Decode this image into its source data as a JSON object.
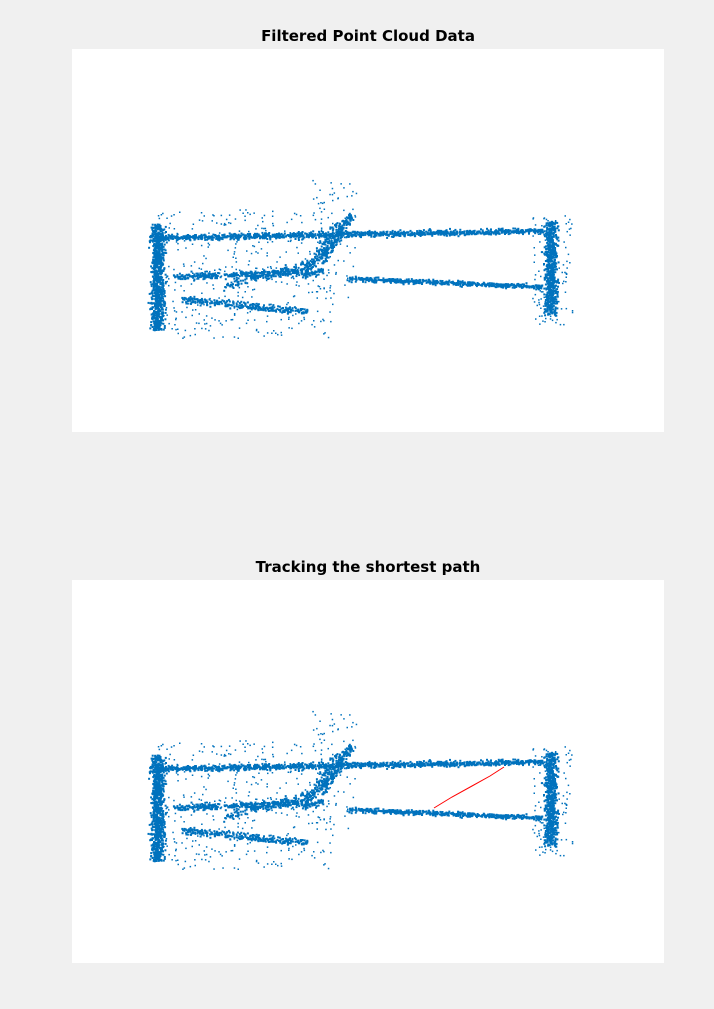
{
  "colors": {
    "figure_background": "#f0f0f0",
    "axes_background": "#ffffff",
    "point_cloud": "#0072bd",
    "path": "#ff0000"
  },
  "chart_data": [
    {
      "type": "scatter",
      "title": "Filtered Point Cloud Data",
      "xlabel": "",
      "ylabel": "",
      "axis_visible": false,
      "grid": false,
      "xlim": [
        0,
        592
      ],
      "ylim": [
        0,
        383
      ],
      "series": [
        {
          "kind": "point_cloud",
          "color": "#0072bd",
          "strokes": [
            {
              "from": [
                88,
                188
              ],
              "to": [
                470,
                181
              ],
              "spread": 4,
              "n": 1100
            },
            {
              "from": [
                100,
                227
              ],
              "to": [
                250,
                222
              ],
              "spread": 5,
              "n": 380
            },
            {
              "from": [
                275,
                229
              ],
              "to": [
                470,
                237
              ],
              "spread": 3,
              "n": 520
            },
            {
              "from": [
                110,
                250
              ],
              "to": [
                235,
                262
              ],
              "spread": 5,
              "n": 280
            },
            {
              "from": [
                150,
                236
              ],
              "to": [
                245,
                212
              ],
              "spread": 6,
              "n": 140
            },
            {
              "from": [
                85,
                175
              ],
              "to": [
                85,
                280
              ],
              "spread": 10,
              "n": 900
            },
            {
              "from": [
                478,
                172
              ],
              "to": [
                478,
                265
              ],
              "spread": 9,
              "n": 650
            },
            {
              "from": [
                248,
                212
              ],
              "to": [
                278,
                165
              ],
              "spread": 7,
              "n": 180
            },
            {
              "from": [
                230,
                230
              ],
              "to": [
                265,
                170
              ],
              "spread": 6,
              "n": 90
            }
          ],
          "scatter": [
            {
              "x": [
                85,
                260
              ],
              "y": [
                160,
                290
              ],
              "n": 380
            },
            {
              "x": [
                240,
                285
              ],
              "y": [
                130,
                250
              ],
              "n": 80
            },
            {
              "x": [
                460,
                500
              ],
              "y": [
                165,
                275
              ],
              "n": 110
            }
          ]
        }
      ]
    },
    {
      "type": "scatter",
      "title": "Tracking the shortest path",
      "xlabel": "",
      "ylabel": "",
      "axis_visible": false,
      "grid": false,
      "xlim": [
        0,
        592
      ],
      "ylim": [
        0,
        383
      ],
      "series": [
        {
          "kind": "point_cloud",
          "color": "#0072bd",
          "strokes": [
            {
              "from": [
                88,
                188
              ],
              "to": [
                470,
                181
              ],
              "spread": 4,
              "n": 1100
            },
            {
              "from": [
                100,
                227
              ],
              "to": [
                250,
                222
              ],
              "spread": 5,
              "n": 380
            },
            {
              "from": [
                275,
                229
              ],
              "to": [
                470,
                237
              ],
              "spread": 3,
              "n": 520
            },
            {
              "from": [
                110,
                250
              ],
              "to": [
                235,
                262
              ],
              "spread": 5,
              "n": 280
            },
            {
              "from": [
                150,
                236
              ],
              "to": [
                245,
                212
              ],
              "spread": 6,
              "n": 140
            },
            {
              "from": [
                85,
                175
              ],
              "to": [
                85,
                280
              ],
              "spread": 10,
              "n": 900
            },
            {
              "from": [
                478,
                172
              ],
              "to": [
                478,
                265
              ],
              "spread": 9,
              "n": 650
            },
            {
              "from": [
                248,
                212
              ],
              "to": [
                278,
                165
              ],
              "spread": 7,
              "n": 180
            },
            {
              "from": [
                230,
                230
              ],
              "to": [
                265,
                170
              ],
              "spread": 6,
              "n": 90
            }
          ],
          "scatter": [
            {
              "x": [
                85,
                260
              ],
              "y": [
                160,
                290
              ],
              "n": 380
            },
            {
              "x": [
                240,
                285
              ],
              "y": [
                130,
                250
              ],
              "n": 80
            },
            {
              "x": [
                460,
                500
              ],
              "y": [
                165,
                275
              ],
              "n": 110
            }
          ]
        },
        {
          "kind": "path",
          "color": "#ff0000",
          "points": [
            [
              362,
              228
            ],
            [
              380,
              217
            ],
            [
              400,
              206
            ],
            [
              418,
              196
            ],
            [
              432,
              187
            ]
          ]
        }
      ]
    }
  ]
}
